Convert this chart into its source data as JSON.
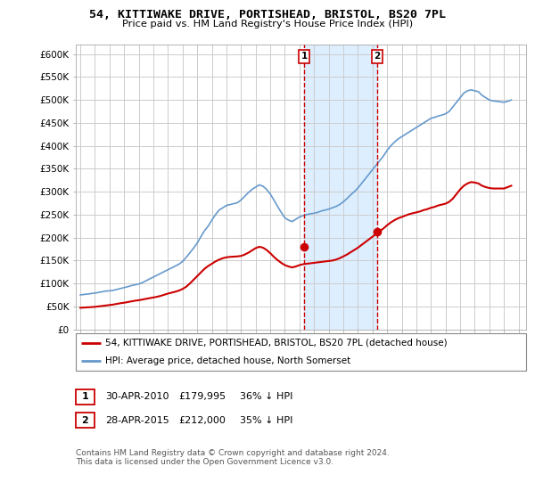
{
  "title": "54, KITTIWAKE DRIVE, PORTISHEAD, BRISTOL, BS20 7PL",
  "subtitle": "Price paid vs. HM Land Registry's House Price Index (HPI)",
  "ylabel_ticks": [
    0,
    50000,
    100000,
    150000,
    200000,
    250000,
    300000,
    350000,
    400000,
    450000,
    500000,
    550000,
    600000
  ],
  "ylabel_labels": [
    "£0",
    "£50K",
    "£100K",
    "£150K",
    "£200K",
    "£250K",
    "£300K",
    "£350K",
    "£400K",
    "£450K",
    "£500K",
    "£550K",
    "£600K"
  ],
  "ylim": [
    0,
    620000
  ],
  "xlim_start": 1994.7,
  "xlim_end": 2025.5,
  "vline1_x": 2010.33,
  "vline2_x": 2015.33,
  "marker1_x": 2010.33,
  "marker1_y": 179995,
  "marker2_x": 2015.33,
  "marker2_y": 212000,
  "transaction1_label": "1",
  "transaction1_date": "30-APR-2010",
  "transaction1_price": "£179,995",
  "transaction1_hpi": "36% ↓ HPI",
  "transaction2_label": "2",
  "transaction2_date": "28-APR-2015",
  "transaction2_price": "£212,000",
  "transaction2_hpi": "35% ↓ HPI",
  "legend_line1": "54, KITTIWAKE DRIVE, PORTISHEAD, BRISTOL, BS20 7PL (detached house)",
  "legend_line2": "HPI: Average price, detached house, North Somerset",
  "footer": "Contains HM Land Registry data © Crown copyright and database right 2024.\nThis data is licensed under the Open Government Licence v3.0.",
  "line_color_property": "#cc0000",
  "line_color_hpi": "#6699cc",
  "vline_color": "#cc0000",
  "highlight_color": "#ddeeff",
  "background_color": "#ffffff",
  "grid_color": "#cccccc",
  "hpi_years": [
    1995,
    1995.25,
    1995.5,
    1995.75,
    1996,
    1996.25,
    1996.5,
    1996.75,
    1997,
    1997.25,
    1997.5,
    1997.75,
    1998,
    1998.25,
    1998.5,
    1998.75,
    1999,
    1999.25,
    1999.5,
    1999.75,
    2000,
    2000.25,
    2000.5,
    2000.75,
    2001,
    2001.25,
    2001.5,
    2001.75,
    2002,
    2002.25,
    2002.5,
    2002.75,
    2003,
    2003.25,
    2003.5,
    2003.75,
    2004,
    2004.25,
    2004.5,
    2004.75,
    2005,
    2005.25,
    2005.5,
    2005.75,
    2006,
    2006.25,
    2006.5,
    2006.75,
    2007,
    2007.25,
    2007.5,
    2007.75,
    2008,
    2008.25,
    2008.5,
    2008.75,
    2009,
    2009.25,
    2009.5,
    2009.75,
    2010,
    2010.25,
    2010.5,
    2010.75,
    2011,
    2011.25,
    2011.5,
    2011.75,
    2012,
    2012.25,
    2012.5,
    2012.75,
    2013,
    2013.25,
    2013.5,
    2013.75,
    2014,
    2014.25,
    2014.5,
    2014.75,
    2015,
    2015.25,
    2015.5,
    2015.75,
    2016,
    2016.25,
    2016.5,
    2016.75,
    2017,
    2017.25,
    2017.5,
    2017.75,
    2018,
    2018.25,
    2018.5,
    2018.75,
    2019,
    2019.25,
    2019.5,
    2019.75,
    2020,
    2020.25,
    2020.5,
    2020.75,
    2021,
    2021.25,
    2021.5,
    2021.75,
    2022,
    2022.25,
    2022.5,
    2022.75,
    2023,
    2023.25,
    2023.5,
    2023.75,
    2024,
    2024.25,
    2024.5
  ],
  "hpi_values": [
    75000,
    76000,
    77000,
    78000,
    79000,
    80500,
    82000,
    83500,
    84000,
    85000,
    87000,
    89000,
    91000,
    93000,
    95500,
    97000,
    99000,
    102000,
    106000,
    110000,
    114000,
    118000,
    122000,
    126000,
    130000,
    134000,
    138000,
    142000,
    148000,
    157000,
    167000,
    177000,
    188000,
    202000,
    215000,
    225000,
    238000,
    250000,
    260000,
    265000,
    270000,
    272000,
    274000,
    276000,
    282000,
    290000,
    298000,
    305000,
    310000,
    315000,
    312000,
    305000,
    295000,
    282000,
    268000,
    255000,
    243000,
    238000,
    235000,
    240000,
    245000,
    248000,
    250000,
    252000,
    253000,
    255000,
    258000,
    260000,
    262000,
    265000,
    268000,
    272000,
    278000,
    285000,
    293000,
    300000,
    308000,
    318000,
    328000,
    338000,
    348000,
    358000,
    368000,
    378000,
    390000,
    400000,
    408000,
    415000,
    420000,
    425000,
    430000,
    435000,
    440000,
    445000,
    450000,
    455000,
    460000,
    462000,
    465000,
    467000,
    470000,
    475000,
    485000,
    495000,
    505000,
    515000,
    520000,
    522000,
    520000,
    518000,
    510000,
    505000,
    500000,
    498000,
    497000,
    496000,
    495000,
    497000,
    500000
  ],
  "prop_years": [
    1995,
    1995.25,
    1995.5,
    1995.75,
    1996,
    1996.25,
    1996.5,
    1996.75,
    1997,
    1997.25,
    1997.5,
    1997.75,
    1998,
    1998.25,
    1998.5,
    1998.75,
    1999,
    1999.25,
    1999.5,
    1999.75,
    2000,
    2000.25,
    2000.5,
    2000.75,
    2001,
    2001.25,
    2001.5,
    2001.75,
    2002,
    2002.25,
    2002.5,
    2002.75,
    2003,
    2003.25,
    2003.5,
    2003.75,
    2004,
    2004.25,
    2004.5,
    2004.75,
    2005,
    2005.25,
    2005.5,
    2005.75,
    2006,
    2006.25,
    2006.5,
    2006.75,
    2007,
    2007.25,
    2007.5,
    2007.75,
    2008,
    2008.25,
    2008.5,
    2008.75,
    2009,
    2009.25,
    2009.5,
    2009.75,
    2010,
    2010.25,
    2010.5,
    2010.75,
    2011,
    2011.25,
    2011.5,
    2011.75,
    2012,
    2012.25,
    2012.5,
    2012.75,
    2013,
    2013.25,
    2013.5,
    2013.75,
    2014,
    2014.25,
    2014.5,
    2014.75,
    2015,
    2015.25,
    2015.5,
    2015.75,
    2016,
    2016.25,
    2016.5,
    2016.75,
    2017,
    2017.25,
    2017.5,
    2017.75,
    2018,
    2018.25,
    2018.5,
    2018.75,
    2019,
    2019.25,
    2019.5,
    2019.75,
    2020,
    2020.25,
    2020.5,
    2020.75,
    2021,
    2021.25,
    2021.5,
    2021.75,
    2022,
    2022.25,
    2022.5,
    2022.75,
    2023,
    2023.25,
    2023.5,
    2023.75,
    2024,
    2024.25,
    2024.5
  ],
  "prop_values": [
    47000,
    47500,
    48000,
    48500,
    49000,
    50000,
    51000,
    52000,
    53000,
    54000,
    55500,
    57000,
    58000,
    59500,
    61000,
    62500,
    63500,
    65000,
    66500,
    68000,
    69500,
    71000,
    73000,
    75500,
    78000,
    80000,
    82000,
    84500,
    88000,
    93000,
    100000,
    108000,
    116000,
    124000,
    132000,
    138000,
    143000,
    148000,
    152000,
    155000,
    157000,
    158000,
    158500,
    159000,
    160000,
    163000,
    167000,
    172000,
    177000,
    180000,
    178000,
    173000,
    166000,
    158000,
    151000,
    145000,
    140000,
    137000,
    135000,
    137000,
    140000,
    142000,
    143000,
    144000,
    145000,
    146000,
    147000,
    148000,
    149000,
    150000,
    152000,
    155000,
    159000,
    163000,
    168000,
    173000,
    178000,
    184000,
    190000,
    196000,
    202000,
    208000,
    214000,
    220000,
    227000,
    233000,
    238000,
    242000,
    245000,
    248000,
    251000,
    253000,
    255000,
    257000,
    260000,
    262000,
    265000,
    267000,
    270000,
    272000,
    274000,
    278000,
    285000,
    295000,
    305000,
    313000,
    318000,
    321000,
    320000,
    318000,
    313000,
    310000,
    308000,
    307000,
    307000,
    307000,
    307000,
    310000,
    313000
  ]
}
